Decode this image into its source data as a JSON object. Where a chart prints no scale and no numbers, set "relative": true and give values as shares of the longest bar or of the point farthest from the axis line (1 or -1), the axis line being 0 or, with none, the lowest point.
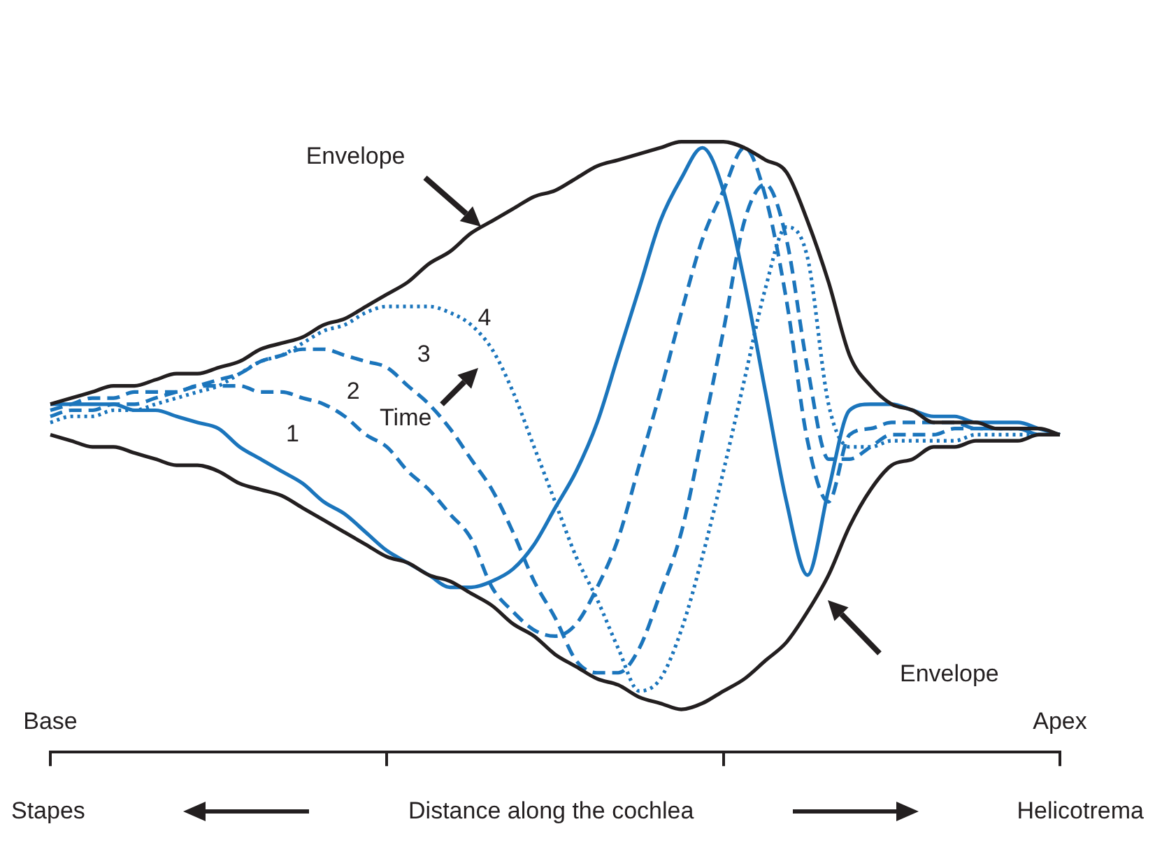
{
  "chart_data": {
    "type": "line",
    "relative": true,
    "xlabel": "Distance along the cochlea",
    "categories": [
      null,
      null,
      null,
      null,
      null,
      null,
      null,
      null,
      null,
      null,
      null,
      null,
      null,
      null,
      null,
      null,
      null,
      null,
      null,
      null,
      null,
      null,
      null,
      null,
      null,
      null,
      null,
      null,
      null,
      null,
      null,
      null,
      null,
      null,
      null,
      null,
      null,
      null,
      null,
      null,
      null,
      null,
      null,
      null,
      null,
      null,
      null,
      null,
      null
    ],
    "legend": false,
    "series": [
      {
        "color": "#231f20",
        "line_style": "solid",
        "values": [
          0.57,
          0.58,
          0.59,
          0.6,
          0.6,
          0.61,
          0.62,
          0.62,
          0.63,
          0.64,
          0.66,
          0.67,
          0.68,
          0.7,
          0.71,
          0.73,
          0.75,
          0.77,
          0.8,
          0.82,
          0.85,
          0.87,
          0.89,
          0.91,
          0.92,
          0.94,
          0.96,
          0.97,
          0.98,
          0.99,
          1.0,
          1.0,
          1.0,
          0.99,
          0.97,
          0.95,
          0.87,
          0.77,
          0.65,
          0.6,
          0.57,
          0.56,
          0.54,
          0.54,
          0.54,
          0.53,
          0.53,
          0.53,
          0.52
        ]
      },
      {
        "color": "#231f20",
        "line_style": "solid",
        "values": [
          0.52,
          0.51,
          0.5,
          0.5,
          0.49,
          0.48,
          0.47,
          0.47,
          0.46,
          0.44,
          0.43,
          0.42,
          0.4,
          0.38,
          0.36,
          0.34,
          0.32,
          0.31,
          0.29,
          0.28,
          0.26,
          0.24,
          0.21,
          0.19,
          0.16,
          0.14,
          0.12,
          0.11,
          0.09,
          0.08,
          0.07,
          0.08,
          0.1,
          0.12,
          0.15,
          0.18,
          0.23,
          0.29,
          0.37,
          0.43,
          0.47,
          0.48,
          0.5,
          0.5,
          0.51,
          0.51,
          0.51,
          0.52,
          0.52
        ]
      },
      {
        "name": "1",
        "color": "#1b75bc",
        "line_style": "solid",
        "values": [
          0.57,
          0.57,
          0.57,
          0.57,
          0.56,
          0.56,
          0.55,
          0.54,
          0.53,
          0.5,
          0.48,
          0.46,
          0.44,
          0.41,
          0.39,
          0.36,
          0.33,
          0.31,
          0.29,
          0.27,
          0.27,
          0.28,
          0.3,
          0.34,
          0.4,
          0.46,
          0.54,
          0.65,
          0.76,
          0.87,
          0.94,
          0.99,
          0.92,
          0.77,
          0.59,
          0.41,
          0.29,
          0.43,
          0.56,
          0.57,
          0.57,
          0.56,
          0.55,
          0.55,
          0.54,
          0.54,
          0.54,
          0.53,
          0.52
        ]
      },
      {
        "name": "2",
        "color": "#1b75bc",
        "line_style": "dashed",
        "values": [
          0.56,
          0.57,
          0.58,
          0.58,
          0.59,
          0.59,
          0.59,
          0.6,
          0.6,
          0.6,
          0.59,
          0.59,
          0.58,
          0.57,
          0.55,
          0.52,
          0.5,
          0.46,
          0.43,
          0.39,
          0.35,
          0.27,
          0.23,
          0.2,
          0.19,
          0.21,
          0.27,
          0.35,
          0.47,
          0.59,
          0.72,
          0.84,
          0.92,
          0.99,
          0.91,
          0.74,
          0.51,
          0.41,
          0.52,
          0.53,
          0.54,
          0.54,
          0.54,
          0.54,
          0.53,
          0.53,
          0.53,
          0.52,
          0.52
        ]
      },
      {
        "name": "3",
        "color": "#1b75bc",
        "line_style": "dashed",
        "values": [
          0.55,
          0.56,
          0.56,
          0.57,
          0.57,
          0.58,
          0.59,
          0.6,
          0.61,
          0.62,
          0.64,
          0.65,
          0.66,
          0.66,
          0.65,
          0.64,
          0.63,
          0.6,
          0.57,
          0.53,
          0.48,
          0.43,
          0.36,
          0.28,
          0.22,
          0.15,
          0.13,
          0.13,
          0.17,
          0.26,
          0.36,
          0.52,
          0.69,
          0.87,
          0.93,
          0.84,
          0.63,
          0.48,
          0.48,
          0.5,
          0.52,
          0.52,
          0.52,
          0.53,
          0.53,
          0.53,
          0.53,
          0.52,
          0.52
        ]
      },
      {
        "name": "4",
        "color": "#1b75bc",
        "line_style": "dotted",
        "values": [
          0.54,
          0.55,
          0.55,
          0.56,
          0.56,
          0.57,
          0.58,
          0.59,
          0.6,
          0.62,
          0.64,
          0.65,
          0.67,
          0.69,
          0.7,
          0.72,
          0.73,
          0.73,
          0.73,
          0.72,
          0.7,
          0.66,
          0.59,
          0.5,
          0.41,
          0.32,
          0.25,
          0.17,
          0.1,
          0.12,
          0.2,
          0.32,
          0.46,
          0.61,
          0.76,
          0.86,
          0.81,
          0.57,
          0.5,
          0.5,
          0.51,
          0.51,
          0.51,
          0.51,
          0.52,
          0.52,
          0.52,
          0.52,
          0.52
        ]
      }
    ],
    "annotations": [
      "Envelope",
      "Envelope",
      "Time",
      "Base",
      "Apex",
      "Stapes",
      "Helicotrema"
    ]
  }
}
